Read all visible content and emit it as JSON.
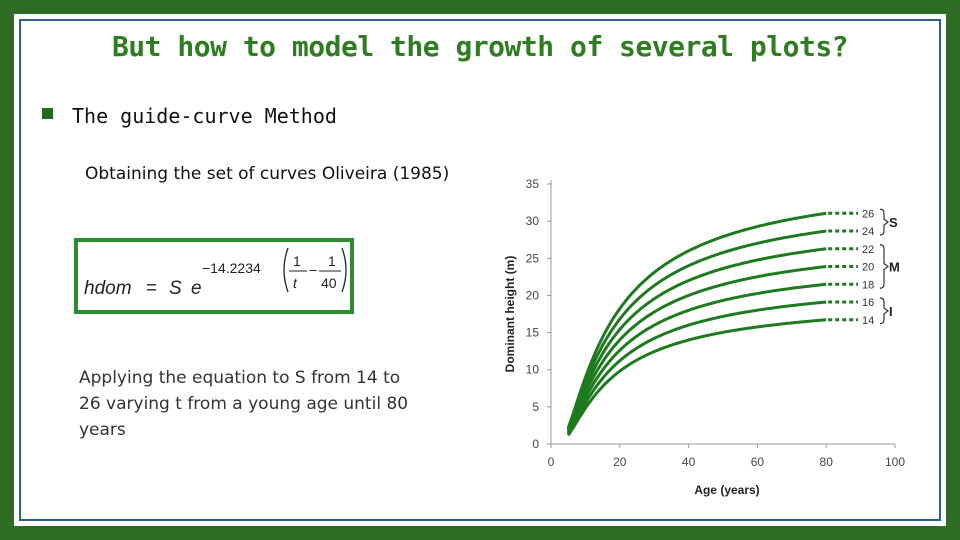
{
  "slide": {
    "title": "But how to model the growth of several plots?",
    "bullet": "The guide-curve Method",
    "subtitle": "Obtaining the set of curves Oliveira (1985)",
    "applying_text": "Applying the equation to S from 14 to 26 varying t from a young age until 80 years",
    "accent_color": "#2e7d1e"
  },
  "equation": {
    "lhs": "hdom",
    "equals": "=",
    "s": "S",
    "e": "e",
    "coef": "−14.2234",
    "num1": "1",
    "den1": "t",
    "minus": "−",
    "num2": "1",
    "den2": "40"
  },
  "chart_data": {
    "type": "line",
    "xlabel": "Age (years)",
    "ylabel": "Dominant height (m)",
    "xlim": [
      0,
      100
    ],
    "ylim": [
      0,
      35
    ],
    "xticks": [
      0,
      20,
      40,
      60,
      80,
      100
    ],
    "yticks": [
      0,
      5,
      10,
      15,
      20,
      25,
      30,
      35
    ],
    "x_start": 5,
    "x_end": 80,
    "k": -14.2234,
    "t_ref": 40,
    "site_indices": [
      "14",
      "16",
      "18",
      "20",
      "22",
      "24",
      "26"
    ],
    "groups": [
      {
        "label": "S",
        "from": "24",
        "to": "26"
      },
      {
        "label": "M",
        "from": "18",
        "to": "22"
      },
      {
        "label": "I",
        "from": "14",
        "to": "16"
      }
    ],
    "line_color": "#1e7a1e",
    "grid": false
  }
}
